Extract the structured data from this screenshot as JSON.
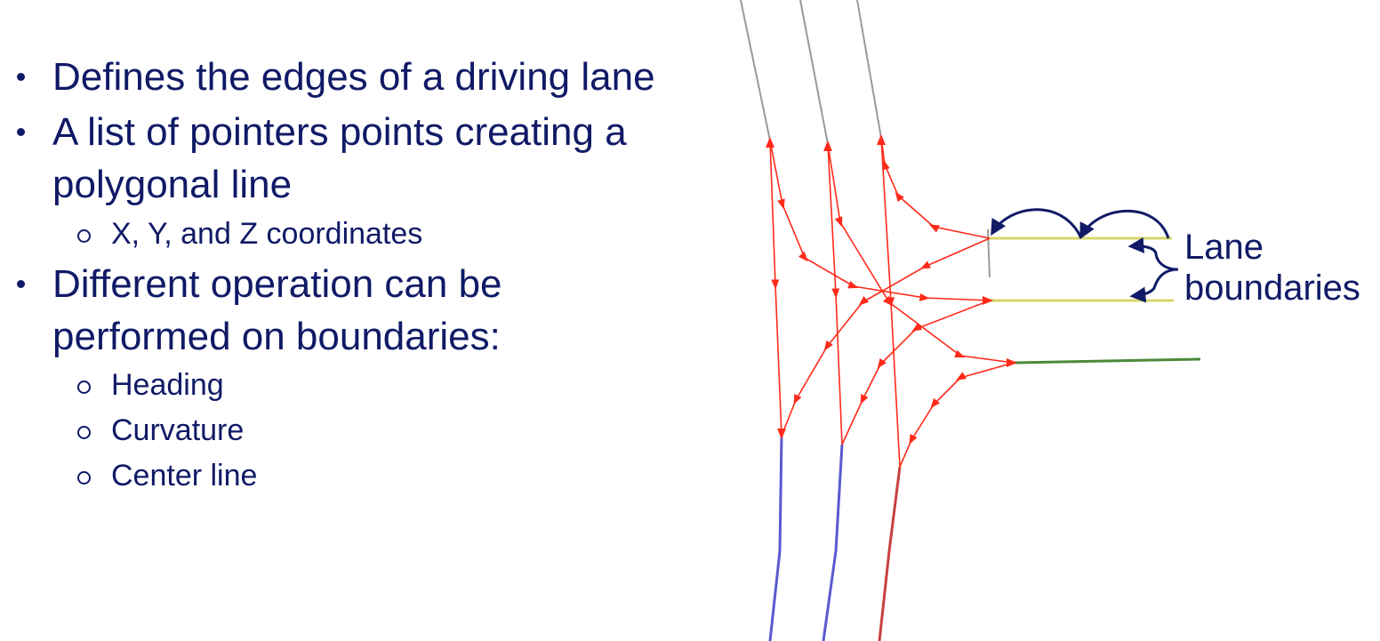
{
  "bullets": [
    {
      "level": 1,
      "text": "Defines the edges of a driving lane"
    },
    {
      "level": 1,
      "text": "A list of pointers points creating a"
    },
    {
      "level": 0,
      "text": "polygonal line"
    },
    {
      "level": 2,
      "text": "X, Y, and Z coordinates"
    },
    {
      "level": 1,
      "text": "Different operation can be"
    },
    {
      "level": 0,
      "text": "performed on boundaries:"
    },
    {
      "level": 2,
      "text": "Heading"
    },
    {
      "level": 2,
      "text": "Curvature"
    },
    {
      "level": 2,
      "text": "Center line"
    }
  ],
  "annotation": {
    "line1": "Lane",
    "line2": "boundaries"
  },
  "colors": {
    "text": "#101a66",
    "lane_link": "#ff2a1a",
    "incoming_road": "#9a9a9a",
    "outgoing_road": "#5a5ad0",
    "boundary_yellow": "#d8d46a",
    "boundary_green": "#4a8a3a",
    "arrow_annotation": "#101a66"
  }
}
